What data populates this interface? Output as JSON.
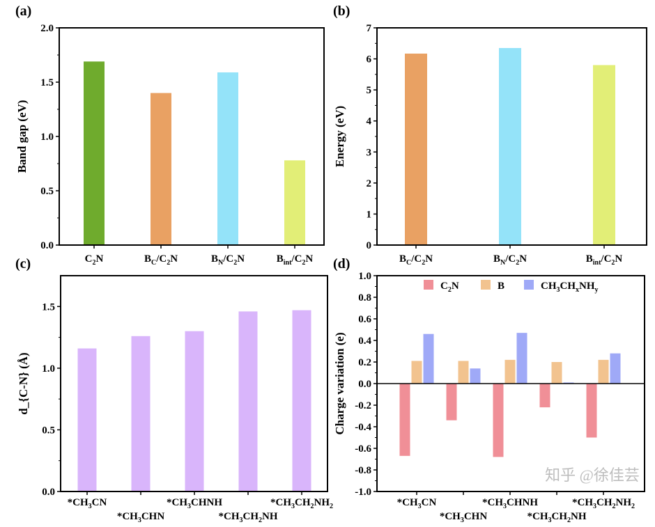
{
  "chart_data": [
    {
      "panel_label": "(a)",
      "type": "bar",
      "categories": [
        "C_{2}N",
        "B_{C}/C_{2}N",
        "B_{N}/C_{2}N",
        "B_{int}/C_{2}N"
      ],
      "values": [
        1.69,
        1.4,
        1.59,
        0.78
      ],
      "colors": [
        "#6fab2d",
        "#e9a163",
        "#94e3f9",
        "#e2ee77"
      ],
      "xlabel": "",
      "ylabel": "Band gap (eV)",
      "ylim": [
        0,
        2.0
      ],
      "yticks": [
        "0.0",
        "0.5",
        "1.0",
        "1.5",
        "2.0"
      ]
    },
    {
      "panel_label": "(b)",
      "type": "bar",
      "categories": [
        "B_{C}/C_{2}N",
        "B_{N}/C_{2}N",
        "B_{int}/C_{2}N"
      ],
      "values": [
        6.17,
        6.35,
        5.8
      ],
      "colors": [
        "#e9a163",
        "#94e3f9",
        "#e2ee77"
      ],
      "xlabel": "",
      "ylabel": "Energy (eV)",
      "ylim": [
        0,
        7
      ],
      "yticks": [
        "0",
        "1",
        "2",
        "3",
        "4",
        "5",
        "6",
        "7"
      ]
    },
    {
      "panel_label": "(c)",
      "type": "bar",
      "categories": [
        "*CH_{3}CN",
        "*CH_{3}CHN",
        "*CH_{3}CHNH",
        "*CH_{3}CH_{2}NH",
        "*CH_{3}CH_{2}NH_{2}"
      ],
      "values": [
        1.16,
        1.26,
        1.3,
        1.46,
        1.47
      ],
      "colors": [
        "#d9b5fb"
      ],
      "xlabel": "",
      "ylabel": "d_{C-N} (Å)",
      "ylim": [
        0,
        1.75
      ],
      "yticks": [
        "0.0",
        "0.5",
        "1.0",
        "1.5"
      ]
    },
    {
      "panel_label": "(d)",
      "type": "bar",
      "categories": [
        "*CH_{3}CN",
        "*CH_{3}CHN",
        "*CH_{3}CHNH",
        "*CH_{3}CH_{2}NH",
        "*CH_{3}CH_{2}NH_{2}"
      ],
      "series": [
        {
          "name": "C_{2}N",
          "values": [
            -0.67,
            -0.34,
            -0.68,
            -0.22,
            -0.5
          ],
          "color": "#f08f97"
        },
        {
          "name": "B",
          "values": [
            0.21,
            0.21,
            0.22,
            0.2,
            0.22
          ],
          "color": "#f2c38f"
        },
        {
          "name": "CH_{3}CH_{x}NH_{y}",
          "values": [
            0.46,
            0.14,
            0.47,
            0.01,
            0.28
          ],
          "color": "#9fa9f7"
        }
      ],
      "xlabel": "",
      "ylabel": "Charge variation (e)",
      "ylim": [
        -1.0,
        1.0
      ],
      "yticks": [
        "-1.0",
        "-0.8",
        "-0.6",
        "-0.4",
        "-0.2",
        "0.0",
        "0.2",
        "0.4",
        "0.6",
        "0.8",
        "1.0"
      ],
      "legend": "top"
    }
  ],
  "watermark": "知乎 @徐佳芸"
}
